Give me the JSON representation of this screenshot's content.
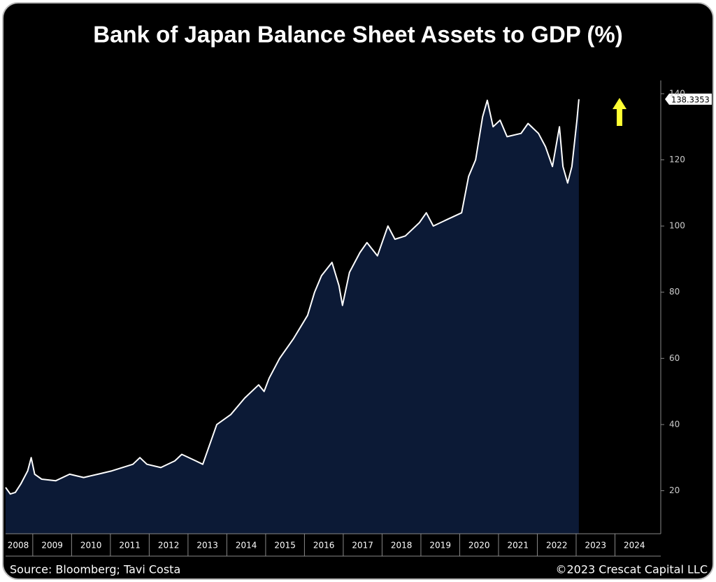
{
  "chart_data": {
    "type": "area",
    "title": "Bank of Japan Balance Sheet Assets to GDP (%)",
    "source": "Source: Bloomberg; Tavi Costa",
    "copyright": "©2023 Crescat Capital LLC",
    "line_color": "#ffffff",
    "fill_color": "#0c1a36",
    "x": [
      2008.3,
      2008.42,
      2008.55,
      2008.69,
      2008.87,
      2008.96,
      2009.05,
      2009.23,
      2009.59,
      2009.95,
      2010.31,
      2010.68,
      2011.04,
      2011.58,
      2011.76,
      2011.94,
      2012.3,
      2012.66,
      2012.84,
      2013.2,
      2013.38,
      2013.56,
      2013.74,
      2014.1,
      2014.46,
      2014.82,
      2014.96,
      2015.09,
      2015.36,
      2015.72,
      2016.08,
      2016.26,
      2016.44,
      2016.71,
      2016.89,
      2016.98,
      2017.16,
      2017.43,
      2017.61,
      2017.88,
      2018.15,
      2018.33,
      2018.6,
      2018.96,
      2019.14,
      2019.32,
      2019.68,
      2020.05,
      2020.23,
      2020.41,
      2020.59,
      2020.71,
      2020.86,
      2021.04,
      2021.22,
      2021.58,
      2021.76,
      2022.03,
      2022.21,
      2022.39,
      2022.57,
      2022.66,
      2022.78,
      2022.89,
      2023.02,
      2023.07
    ],
    "values": [
      21,
      19,
      19.5,
      22,
      26,
      30,
      25,
      23.5,
      23,
      25,
      24,
      25,
      26,
      28,
      30,
      28,
      27,
      29,
      31,
      29,
      28,
      34,
      40,
      43,
      48,
      52,
      50,
      54,
      60,
      66,
      73,
      80,
      85,
      89,
      82,
      76,
      86,
      92,
      95,
      91,
      100,
      96,
      97,
      101,
      104,
      100,
      102,
      104,
      115,
      120,
      133,
      138,
      130,
      132,
      127,
      128,
      131,
      128,
      124,
      118,
      130,
      118,
      113,
      118,
      132,
      138.3353
    ],
    "xlim": [
      2008.3,
      2025
    ],
    "xticks": [
      2008,
      2009,
      2010,
      2011,
      2012,
      2013,
      2014,
      2015,
      2016,
      2017,
      2018,
      2019,
      2020,
      2021,
      2022,
      2023,
      2024
    ],
    "ylim": [
      7,
      144
    ],
    "yticks": [
      20,
      40,
      60,
      80,
      100,
      120,
      140
    ]
  }
}
